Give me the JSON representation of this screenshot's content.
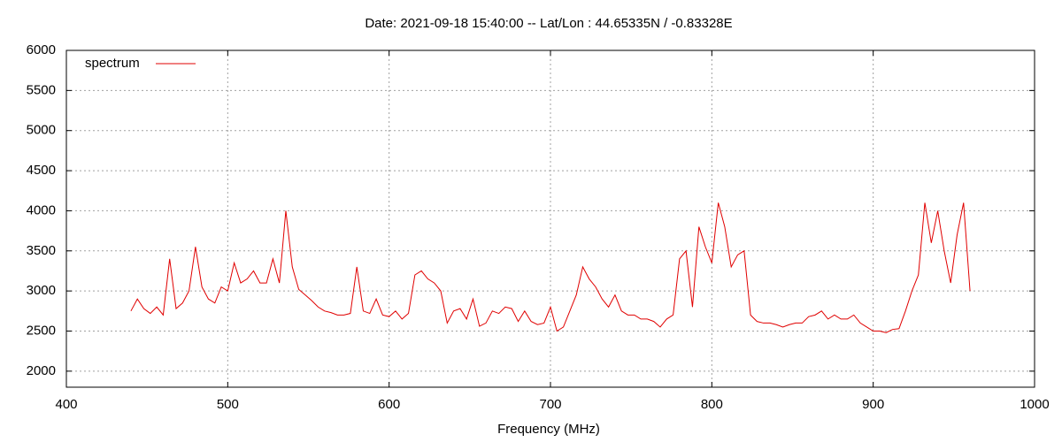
{
  "chart_data": {
    "type": "line",
    "title": "Date: 2021-09-18 15:40:00  --  Lat/Lon : 44.65335N / -0.83328E",
    "x_label": "Frequency (MHz)",
    "legend": "top-left",
    "grid": true,
    "xlim": [
      400,
      1000
    ],
    "xticks": [
      400,
      500,
      600,
      700,
      800,
      900,
      1000
    ],
    "ylim": [
      1800,
      6000
    ],
    "yticks": [
      2000,
      2500,
      3000,
      3500,
      4000,
      4500,
      5000,
      5500,
      6000
    ],
    "x": [
      440,
      444,
      448,
      452,
      456,
      460,
      464,
      468,
      472,
      476,
      480,
      484,
      488,
      492,
      496,
      500,
      504,
      508,
      512,
      516,
      520,
      524,
      528,
      532,
      536,
      540,
      544,
      548,
      552,
      556,
      560,
      564,
      568,
      572,
      576,
      580,
      584,
      588,
      592,
      596,
      600,
      604,
      608,
      612,
      616,
      620,
      624,
      628,
      632,
      636,
      640,
      644,
      648,
      652,
      656,
      660,
      664,
      668,
      672,
      676,
      680,
      684,
      688,
      692,
      696,
      700,
      704,
      708,
      712,
      716,
      720,
      724,
      728,
      732,
      736,
      740,
      744,
      748,
      752,
      756,
      760,
      764,
      768,
      772,
      776,
      780,
      784,
      788,
      792,
      796,
      800,
      804,
      808,
      812,
      816,
      820,
      824,
      828,
      832,
      836,
      840,
      844,
      848,
      852,
      856,
      860,
      864,
      868,
      872,
      876,
      880,
      884,
      888,
      892,
      896,
      900,
      904,
      908,
      912,
      916,
      920,
      924,
      928,
      932,
      936,
      940,
      944,
      948,
      952,
      956,
      960
    ],
    "series": [
      {
        "name": "spectrum",
        "color": "#e00000",
        "values": [
          2750,
          2900,
          2780,
          2720,
          2800,
          2700,
          3400,
          2780,
          2850,
          3000,
          3550,
          3050,
          2900,
          2850,
          3050,
          3000,
          3350,
          3100,
          3150,
          3250,
          3100,
          3100,
          3400,
          3100,
          4000,
          3300,
          3020,
          2950,
          2880,
          2800,
          2750,
          2730,
          2700,
          2700,
          2720,
          3300,
          2750,
          2720,
          2900,
          2700,
          2680,
          2750,
          2650,
          2720,
          3200,
          3250,
          3150,
          3100,
          3000,
          2600,
          2750,
          2780,
          2650,
          2900,
          2560,
          2600,
          2750,
          2720,
          2800,
          2780,
          2620,
          2750,
          2620,
          2580,
          2600,
          2800,
          2500,
          2550,
          2750,
          2950,
          3300,
          3150,
          3050,
          2900,
          2800,
          2950,
          2750,
          2700,
          2700,
          2650,
          2650,
          2620,
          2550,
          2650,
          2700,
          3400,
          3500,
          2800,
          3800,
          3550,
          3350,
          4100,
          3800,
          3300,
          3450,
          3500,
          2700,
          2620,
          2600,
          2600,
          2580,
          2550,
          2580,
          2600,
          2600,
          2680,
          2700,
          2750,
          2650,
          2700,
          2650,
          2650,
          2700,
          2600,
          2550,
          2500,
          2500,
          2480,
          2520,
          2530,
          2750,
          3000,
          3200,
          4100,
          3600,
          4000,
          3500,
          3100,
          3700,
          4100,
          3000
        ]
      }
    ]
  }
}
